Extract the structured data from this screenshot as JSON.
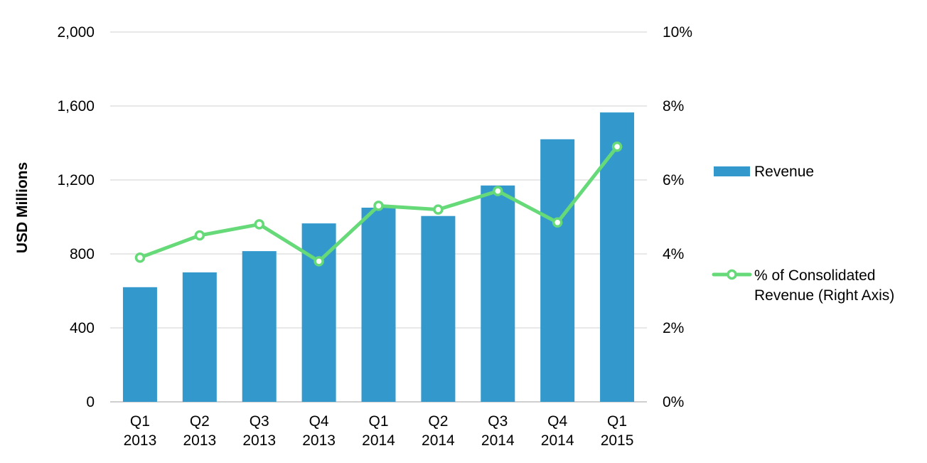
{
  "chart_data": {
    "type": "bar",
    "title": "",
    "categories": [
      [
        "Q1",
        "2013"
      ],
      [
        "Q2",
        "2013"
      ],
      [
        "Q3",
        "2013"
      ],
      [
        "Q4",
        "2013"
      ],
      [
        "Q1",
        "2014"
      ],
      [
        "Q2",
        "2014"
      ],
      [
        "Q3",
        "2014"
      ],
      [
        "Q4",
        "2014"
      ],
      [
        "Q1",
        "2015"
      ]
    ],
    "series": [
      {
        "name": "Revenue",
        "type": "bar",
        "axis": "left",
        "color": "#3399cc",
        "values": [
          620,
          700,
          815,
          965,
          1050,
          1005,
          1170,
          1420,
          1565
        ]
      },
      {
        "name": "% of Consolidated Revenue (Right Axis)",
        "legend_lines": [
          "% of Consolidated",
          "Revenue (Right Axis)"
        ],
        "type": "line",
        "axis": "right",
        "color": "#66d978",
        "values": [
          3.9,
          4.5,
          4.8,
          3.8,
          5.3,
          5.2,
          5.7,
          4.85,
          6.9
        ]
      }
    ],
    "ylabel": "USD Millions",
    "ylim": [
      0,
      2000
    ],
    "yticks": [
      0,
      400,
      800,
      1200,
      1600,
      2000
    ],
    "ytick_labels": [
      "0",
      "400",
      "800",
      "1,200",
      "1,600",
      "2,000"
    ],
    "y2lim": [
      0,
      10
    ],
    "y2ticks": [
      0,
      2,
      4,
      6,
      8,
      10
    ],
    "y2tick_labels": [
      "0%",
      "2%",
      "4%",
      "6%",
      "8%",
      "10%"
    ],
    "grid": true,
    "legend_position": "right"
  }
}
